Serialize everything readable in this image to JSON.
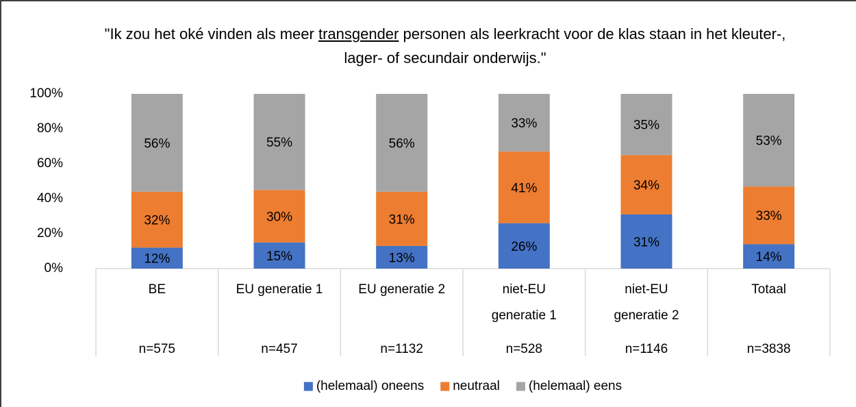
{
  "chart_data": {
    "type": "stacked_bar",
    "title": [
      "\"Ik zou het oké vinden als meer ",
      "transgender",
      " personen als leerkracht voor de klas staan in het kleuter-, lager- of secundair onderwijs.\""
    ],
    "categories": [
      "BE",
      "EU generatie 1",
      "EU generatie 2",
      "niet-EU\ngeneratie 1",
      "niet-EU\ngeneratie 2",
      "Totaal"
    ],
    "sample_sizes": [
      "n=575",
      "n=457",
      "n=1132",
      "n=528",
      "n=1146",
      "n=3838"
    ],
    "series": [
      {
        "name": "(helemaal) oneens",
        "color": "#4472c4",
        "values": [
          12,
          15,
          13,
          26,
          31,
          14
        ],
        "value_labels": [
          "12%",
          "15%",
          "13%",
          "26%",
          "31%",
          "14%"
        ]
      },
      {
        "name": "neutraal",
        "color": "#ed7d31",
        "values": [
          32,
          30,
          31,
          41,
          34,
          33
        ],
        "value_labels": [
          "32%",
          "30%",
          "31%",
          "41%",
          "34%",
          "33%"
        ]
      },
      {
        "name": "(helemaal) eens",
        "color": "#a5a5a5",
        "values": [
          56,
          55,
          56,
          33,
          35,
          53
        ],
        "value_labels": [
          "56%",
          "55%",
          "56%",
          "33%",
          "35%",
          "53%"
        ]
      }
    ],
    "ylim": [
      0,
      100
    ],
    "yticks": [
      {
        "value": 0,
        "label": "0%"
      },
      {
        "value": 20,
        "label": "20%"
      },
      {
        "value": 40,
        "label": "40%"
      },
      {
        "value": 60,
        "label": "60%"
      },
      {
        "value": 80,
        "label": "80%"
      },
      {
        "value": 100,
        "label": "100%"
      }
    ],
    "legend": "bottom"
  }
}
